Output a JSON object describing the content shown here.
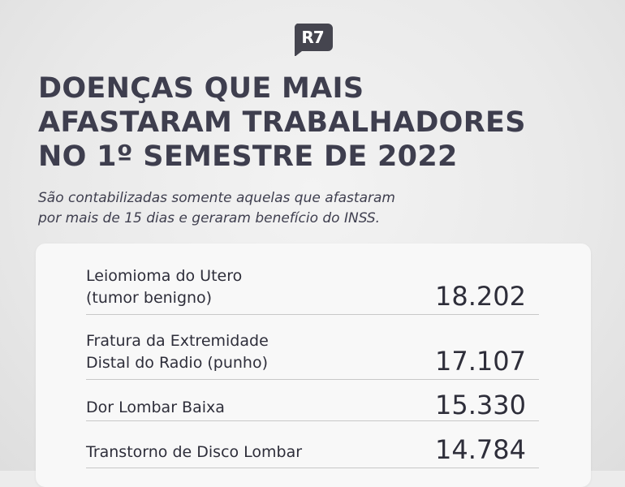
{
  "brand": {
    "logo_text": "R7",
    "logo_color": "#45454f"
  },
  "title": {
    "lines": [
      "DOENÇAS QUE MAIS",
      "AFASTARAM TRABALHADORES",
      "NO 1º SEMESTRE DE 2022"
    ]
  },
  "subtitle": {
    "lines": [
      "São contabilizadas somente aquelas que afastaram",
      "por mais de 15 dias e geraram benefício do INSS."
    ]
  },
  "items": [
    {
      "label_lines": [
        "Leiomioma do Utero",
        "(tumor benigno)"
      ],
      "value": "18.202"
    },
    {
      "label_lines": [
        "Fratura da Extremidade",
        "Distal do Radio (punho)"
      ],
      "value": "17.107"
    },
    {
      "label_lines": [
        "Dor Lombar Baixa"
      ],
      "value": "15.330"
    },
    {
      "label_lines": [
        "Transtorno de Disco Lombar"
      ],
      "value": "14.784"
    }
  ],
  "colors": {
    "text": "#3e3e4e",
    "background": "#ececec",
    "card": "#f8f8f8",
    "divider": "#c8c8c8"
  }
}
